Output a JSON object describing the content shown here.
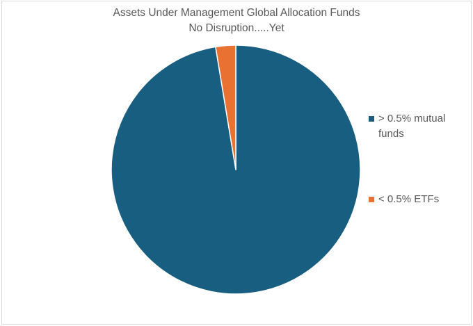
{
  "chart_data": {
    "type": "pie",
    "title": "Assets Under Management Global Allocation Funds",
    "subtitle": "No Disruption.....Yet",
    "categories": [
      "> 0.5% mutual funds",
      "< 0.5% ETFs"
    ],
    "values": [
      97.4,
      2.6
    ],
    "colors": [
      "#175e80",
      "#e97132"
    ],
    "legend_position": "right",
    "start_angle_deg": 0,
    "direction": "clockwise"
  }
}
